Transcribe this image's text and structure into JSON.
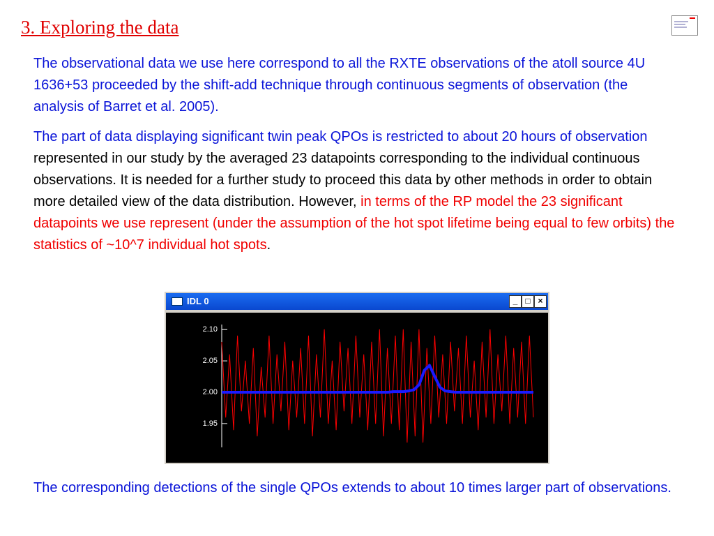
{
  "title": "3. Exploring the data",
  "paragraphs": [
    [
      "The observational data we use here correspond to all the RXTE observations of the atoll source 4U 1636+53 proceeded by the shift-add technique through continuous segments of observation (the analysis of Barret et al. 2005)."
    ],
    [
      "The part of data displaying significant twin peak QPOs is restricted to about 20 hours of observation",
      " represented in our study by the averaged 23 datapoints corresponding to the individual continuous observations. It is needed for a further study to proceed this data by other methods in order to obtain more detailed view of the data distribution. However, ",
      "in terms of the RP model the 23 significant datapoints we use represent (under the assumption of the hot spot lifetime being equal to few orbits) the statistics of ~10^7 individual hot spots",
      "."
    ],
    [
      "The corresponding detections of the single QPOs extends to about 10 times larger part of observations."
    ]
  ],
  "window_title": "IDL 0",
  "chart_data": {
    "type": "line",
    "ylim": [
      1.912,
      2.108
    ],
    "yticks": [
      {
        "value": 2.1,
        "label": "2.10"
      },
      {
        "value": 2.05,
        "label": "2.05"
      },
      {
        "value": 2.0,
        "label": "2.00"
      },
      {
        "value": 1.95,
        "label": "1.95"
      }
    ],
    "series": [
      {
        "color": "#ff0000",
        "values": [
          2.08,
          1.96,
          2.06,
          1.94,
          2.09,
          1.97,
          2.05,
          1.95,
          2.07,
          1.93,
          2.04,
          1.96,
          2.09,
          1.95,
          2.06,
          1.97,
          2.08,
          1.94,
          2.05,
          1.96,
          2.07,
          1.95,
          2.09,
          1.93,
          2.06,
          1.96,
          2.1,
          1.95,
          2.05,
          1.94,
          2.08,
          1.97,
          2.07,
          1.95,
          2.09,
          1.96,
          2.06,
          1.94,
          2.08,
          1.95,
          2.1,
          1.93,
          2.07,
          1.95,
          2.09,
          1.94,
          2.1,
          1.92,
          2.08,
          1.93,
          2.1,
          1.92,
          2.07,
          1.95,
          2.09,
          1.96,
          2.06,
          1.95,
          2.08,
          1.97,
          2.07,
          1.95,
          2.09,
          1.96,
          2.05,
          1.94,
          2.08,
          1.96,
          2.1,
          1.95,
          2.06,
          1.97,
          2.09,
          1.95,
          2.07,
          1.96,
          2.08,
          1.95,
          2.09,
          1.96
        ]
      },
      {
        "color": "#1a1aff",
        "values": [
          2.0,
          2.0,
          2.0,
          2.0,
          2.0,
          2.0,
          2.0,
          2.0,
          2.0,
          2.0,
          2.0,
          2.0,
          2.0,
          2.0,
          2.0,
          2.0,
          2.0,
          2.0,
          2.0,
          2.0,
          2.0,
          2.0,
          2.0,
          2.0,
          2.0,
          2.0,
          2.0,
          2.0,
          2.0,
          2.0,
          2.0,
          2.0,
          2.0,
          2.001,
          2.001,
          2.001,
          2.002,
          2.004,
          2.012,
          2.035,
          2.043,
          2.025,
          2.008,
          2.002,
          2.001,
          2.0,
          2.0,
          2.0,
          2.0,
          2.0,
          2.0,
          2.0,
          2.0,
          2.0,
          2.0,
          2.0,
          2.0,
          2.0,
          2.0,
          2.0,
          2.0
        ]
      }
    ]
  }
}
